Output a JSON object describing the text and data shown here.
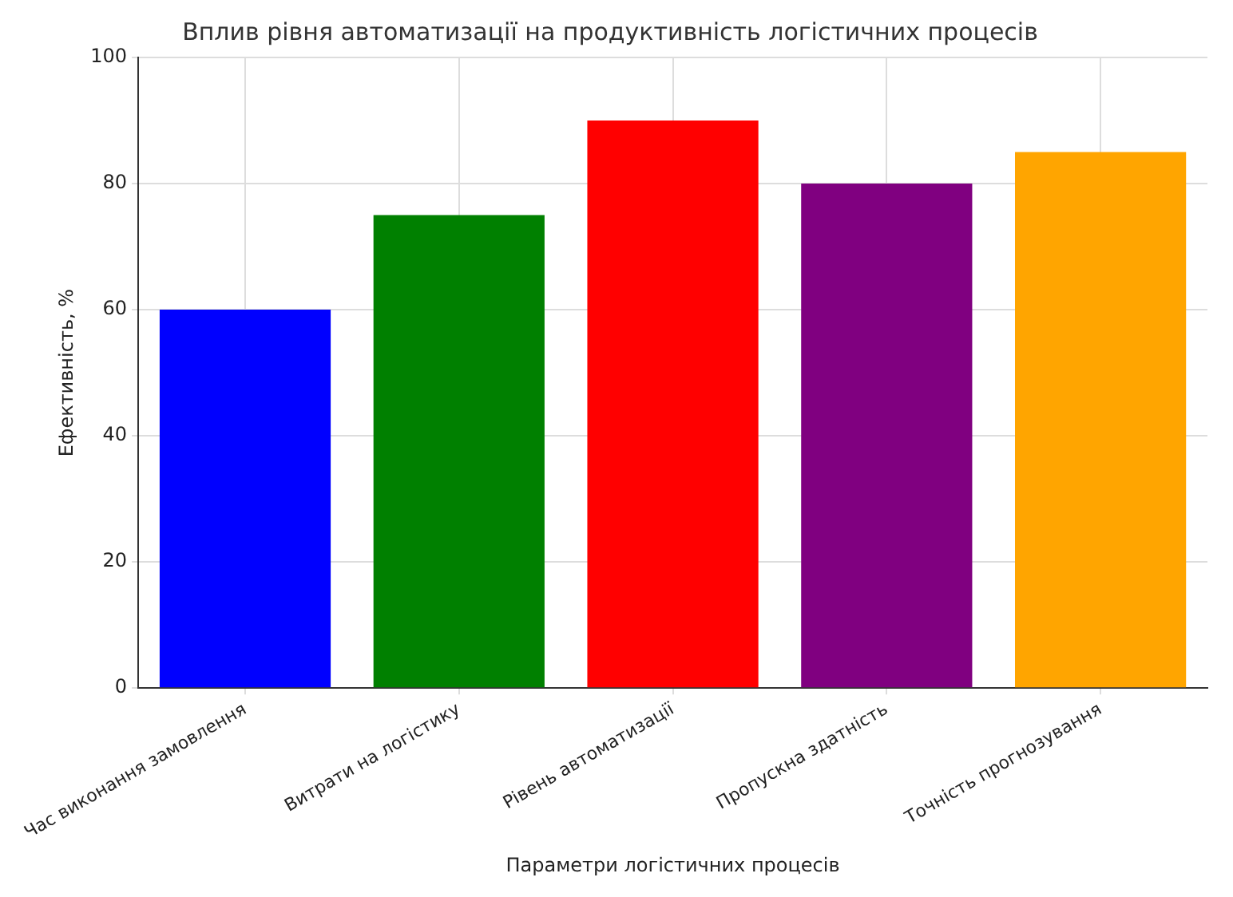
{
  "chart_data": {
    "type": "bar",
    "title": "Вплив рівня автоматизації на продуктивність логістичних процесів",
    "xlabel": "Параметри логістичних процесів",
    "ylabel": "Ефективність, %",
    "categories": [
      "Час виконання замовлення",
      "Витрати на логістику",
      "Рівень автоматизації",
      "Пропускна здатність",
      "Точність прогнозування"
    ],
    "values": [
      60,
      75,
      90,
      80,
      85
    ],
    "colors": [
      "#0000ff",
      "#008000",
      "#ff0000",
      "#800080",
      "#ffa500"
    ],
    "ylim": [
      0,
      100
    ],
    "yticks": [
      0,
      20,
      40,
      60,
      80,
      100
    ],
    "grid": true
  }
}
